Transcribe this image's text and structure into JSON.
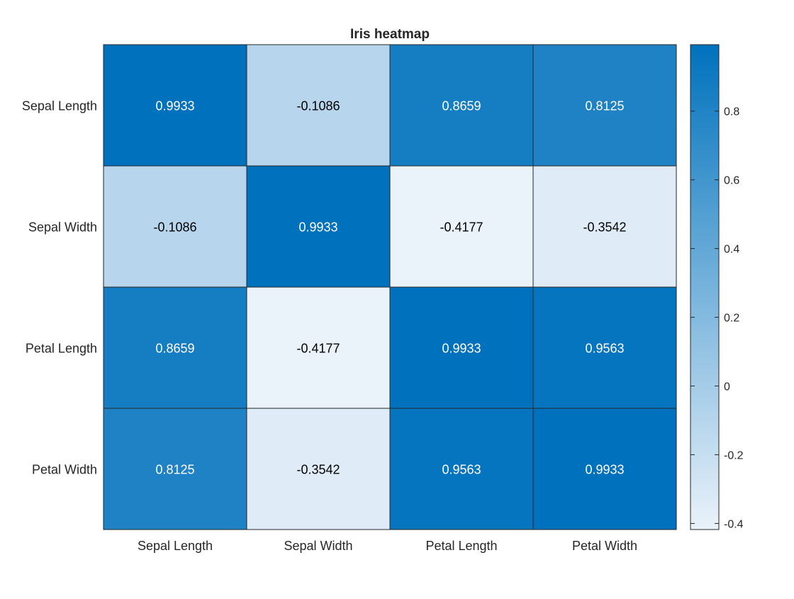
{
  "chart_data": {
    "type": "heatmap",
    "title": "Iris heatmap",
    "x_labels": [
      "Sepal Length",
      "Sepal Width",
      "Petal Length",
      "Petal Width"
    ],
    "y_labels": [
      "Sepal Length",
      "Sepal Width",
      "Petal Length",
      "Petal Width"
    ],
    "values": [
      [
        0.9933,
        -0.1086,
        0.8659,
        0.8125
      ],
      [
        -0.1086,
        0.9933,
        -0.4177,
        -0.3542
      ],
      [
        0.8659,
        -0.4177,
        0.9933,
        0.9563
      ],
      [
        0.8125,
        -0.3542,
        0.9563,
        0.9933
      ]
    ],
    "value_labels": [
      [
        "0.9933",
        "-0.1086",
        "0.8659",
        "0.8125"
      ],
      [
        "-0.1086",
        "0.9933",
        "-0.4177",
        "-0.3542"
      ],
      [
        "0.8659",
        "-0.4177",
        "0.9933",
        "0.9563"
      ],
      [
        "0.8125",
        "-0.3542",
        "0.9563",
        "0.9933"
      ]
    ],
    "colorbar": {
      "range": [
        -0.4177,
        0.9933
      ],
      "ticks": [
        -0.4,
        -0.2,
        0,
        0.2,
        0.4,
        0.6,
        0.8
      ],
      "tick_labels": [
        "-0.4",
        "-0.2",
        "0",
        "0.2",
        "0.4",
        "0.6",
        "0.8"
      ],
      "color_low": "#eaf2fa",
      "color_high": "#0072bd"
    },
    "text_color_dark": "#000000",
    "text_color_light": "#ffffff",
    "grid_color": "#262626"
  }
}
